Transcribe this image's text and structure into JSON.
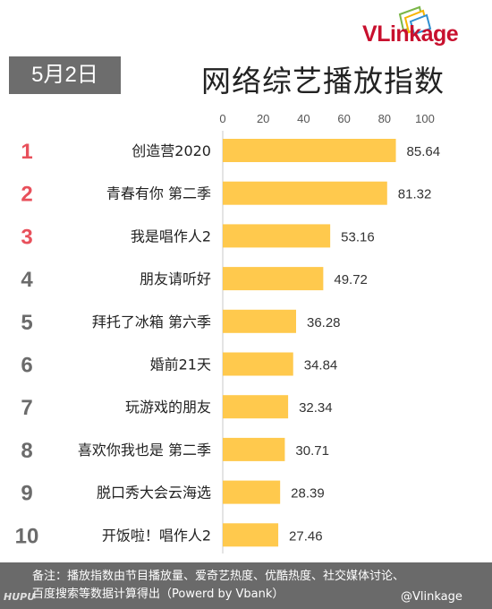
{
  "brand": {
    "logo_text_v": "V",
    "logo_text_rest": "Linkage"
  },
  "header": {
    "date": "5月2日",
    "title": "网络综艺播放指数"
  },
  "chart_data": {
    "type": "bar",
    "orientation": "horizontal",
    "title": "网络综艺播放指数",
    "x_ticks": [
      0,
      20,
      40,
      60,
      80,
      100
    ],
    "xlim": [
      0,
      100
    ],
    "ranks": [
      "1",
      "2",
      "3",
      "4",
      "5",
      "6",
      "7",
      "8",
      "9",
      "10"
    ],
    "categories": [
      "创造营2020",
      "青春有你 第二季",
      "我是唱作人2",
      "朋友请听好",
      "拜托了冰箱 第六季",
      "婚前21天",
      "玩游戏的朋友",
      "喜欢你我也是 第二季",
      "脱口秀大会云海选",
      "开饭啦！唱作人2"
    ],
    "values": [
      85.64,
      81.32,
      53.16,
      49.72,
      36.28,
      34.84,
      32.34,
      30.71,
      28.39,
      27.46
    ],
    "value_labels": [
      "85.64",
      "81.32",
      "53.16",
      "49.72",
      "36.28",
      "34.84",
      "32.34",
      "30.71",
      "28.39",
      "27.46"
    ],
    "bar_color": "#ffc94d",
    "rank_colors": {
      "top3": "#e8505b",
      "rest": "#6b6b6b"
    },
    "grid": false,
    "legend": "none"
  },
  "footer": {
    "note_line1": "备注：播放指数由节目播放量、爱奇艺热度、优酷热度、社交媒体讨论、",
    "note_line2": "百度搜索等数据计算得出（Powerd by Vbank）",
    "watermark": "HUPU",
    "weibo": "@Vlinkage"
  }
}
